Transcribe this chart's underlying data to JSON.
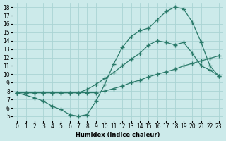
{
  "xlabel": "Humidex (Indice chaleur)",
  "bg_color": "#cceaea",
  "grid_color": "#aad4d4",
  "line_color": "#2a7a6a",
  "xlim": [
    -0.5,
    23.5
  ],
  "ylim": [
    4.5,
    18.5
  ],
  "xticks": [
    0,
    1,
    2,
    3,
    4,
    5,
    6,
    7,
    8,
    9,
    10,
    11,
    12,
    13,
    14,
    15,
    16,
    17,
    18,
    19,
    20,
    21,
    22,
    23
  ],
  "yticks": [
    5,
    6,
    7,
    8,
    9,
    10,
    11,
    12,
    13,
    14,
    15,
    16,
    17,
    18
  ],
  "line1": {
    "x": [
      0,
      1,
      2,
      3,
      4,
      5,
      6,
      7,
      8,
      9,
      10,
      11,
      12,
      13,
      14,
      15,
      16,
      17,
      18,
      19,
      20,
      21,
      22,
      23
    ],
    "y": [
      7.8,
      7.8,
      7.8,
      7.8,
      7.8,
      7.8,
      7.8,
      7.8,
      7.8,
      7.8,
      8.0,
      8.3,
      8.6,
      9.0,
      9.3,
      9.7,
      10.0,
      10.3,
      10.6,
      11.0,
      11.3,
      11.6,
      11.9,
      12.2
    ]
  },
  "line2": {
    "x": [
      0,
      1,
      2,
      3,
      4,
      5,
      6,
      7,
      8,
      9,
      10,
      11,
      12,
      13,
      14,
      15,
      16,
      17,
      18,
      19,
      20,
      21,
      22,
      23
    ],
    "y": [
      7.8,
      7.8,
      7.8,
      7.8,
      7.8,
      7.8,
      7.8,
      7.8,
      8.2,
      8.8,
      9.5,
      10.2,
      11.0,
      11.8,
      12.5,
      13.5,
      14.0,
      13.8,
      13.5,
      13.8,
      12.5,
      11.0,
      10.5,
      9.8
    ]
  },
  "line3": {
    "x": [
      0,
      2,
      3,
      4,
      5,
      6,
      7,
      8,
      9,
      10,
      11,
      12,
      13,
      14,
      15,
      16,
      17,
      18,
      19,
      20,
      21,
      22,
      23
    ],
    "y": [
      7.8,
      7.2,
      6.8,
      6.2,
      5.8,
      5.2,
      5.0,
      5.2,
      6.8,
      8.8,
      11.2,
      13.2,
      14.5,
      15.2,
      15.5,
      16.5,
      17.5,
      18.0,
      17.8,
      16.2,
      13.8,
      11.0,
      9.8
    ]
  }
}
